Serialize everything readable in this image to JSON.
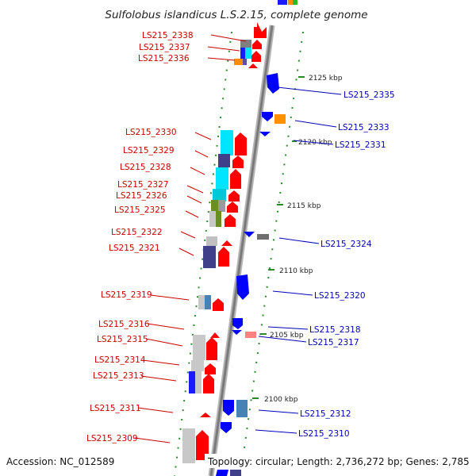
{
  "title": "Sulfolobus islandicus L.S.2.15, complete genome",
  "accession": "Accession: NC_012589",
  "topology": "Topology: circular; Length: 2,736,272 bp; Genes: 2,785",
  "scale_labels": [
    "2125 kbp",
    "2120 kbp",
    "2115 kbp",
    "2110 kbp",
    "2105 kbp",
    "2100 kbp"
  ],
  "genes_left": [
    "LS215_2338",
    "LS215_2337",
    "LS215_2336",
    "LS215_2330",
    "LS215_2329",
    "LS215_2328",
    "LS215_2327",
    "LS215_2326",
    "LS215_2325",
    "LS215_2322",
    "LS215_2321",
    "LS215_2319",
    "LS215_2316",
    "LS215_2315",
    "LS215_2314",
    "LS215_2313",
    "LS215_2311",
    "LS215_2309"
  ],
  "genes_right": [
    "LS215_2335",
    "LS215_2333",
    "LS215_2331",
    "LS215_2324",
    "LS215_2320",
    "LS215_2318",
    "LS215_2317",
    "LS215_2312",
    "LS215_2310"
  ],
  "colors": {
    "forward": "#ff0000",
    "reverse": "#0000ff",
    "backbone": "#909090",
    "tick": "#2a8a2a"
  }
}
